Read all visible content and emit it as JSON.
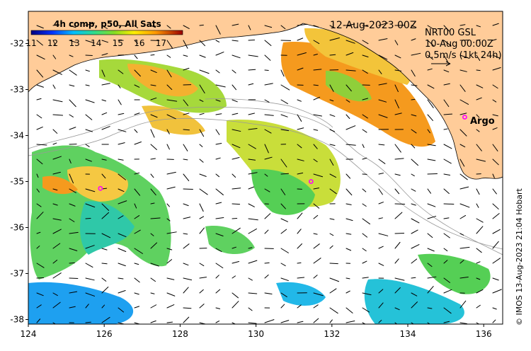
{
  "map": {
    "date_label": "12-Aug-2023 00Z",
    "current_source": "NRT00 GSL",
    "current_time": "10-Aug 00:00Z",
    "current_scale": "0.5m/s (1kt 24h)",
    "argo_label": "Argo",
    "credit": "© IMOS 13-Aug-2023 21:04 Hobart",
    "colorbar": {
      "title": "4h comp, p50, All Sats",
      "min": 11,
      "max": 18,
      "ticks": [
        "11",
        "12",
        "13",
        "14",
        "15",
        "16",
        "17"
      ]
    },
    "x_axis": {
      "range": [
        124,
        136.5
      ],
      "ticks": [
        {
          "value": 124,
          "label": "124"
        },
        {
          "value": 126,
          "label": "126"
        },
        {
          "value": 128,
          "label": "128"
        },
        {
          "value": 130,
          "label": "130"
        },
        {
          "value": 132,
          "label": "132"
        },
        {
          "value": 134,
          "label": "134"
        },
        {
          "value": 136,
          "label": "136"
        }
      ]
    },
    "y_axis": {
      "range": [
        -38.1,
        -31.3
      ],
      "ticks": [
        {
          "value": -32,
          "label": "-32"
        },
        {
          "value": -33,
          "label": "-33"
        },
        {
          "value": -34,
          "label": "-34"
        },
        {
          "value": -35,
          "label": "-35"
        },
        {
          "value": -36,
          "label": "-36"
        },
        {
          "value": -37,
          "label": "-37"
        },
        {
          "value": -38,
          "label": "-38"
        }
      ]
    },
    "argo_floats": [
      {
        "lon": 125.9,
        "lat": -35.15
      },
      {
        "lon": 131.45,
        "lat": -35.0
      },
      {
        "lon": 135.5,
        "lat": -33.6
      }
    ],
    "colors": {
      "land": "#ffcc99",
      "argo_marker": "#ff00ff"
    }
  }
}
